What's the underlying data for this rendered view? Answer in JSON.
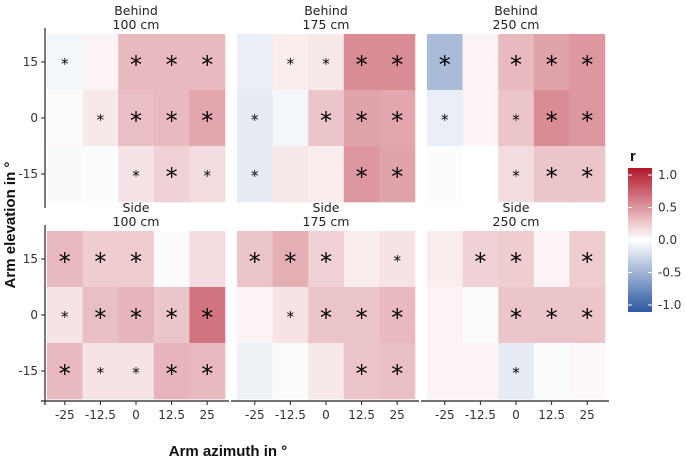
{
  "chart_data": {
    "type": "heatmap",
    "xlabel": "Arm azimuth in °",
    "ylabel": "Arm elevation in °",
    "x_categories": [
      "-25",
      "-12.5",
      "0",
      "12.5",
      "25"
    ],
    "y_categories": [
      "15",
      "0",
      "-15"
    ],
    "legend": {
      "title": "r",
      "ticks": [
        "1.0",
        "0.5",
        "0.0",
        "-0.5",
        "-1.0"
      ],
      "range": [
        -1,
        1
      ],
      "low_color": "#2c58a0",
      "mid_color": "#ffffff",
      "high_color": "#b2182b",
      "placement": "right"
    },
    "panels": [
      {
        "title_line1": "Behind",
        "title_line2": "100 cm",
        "values": [
          [
            -0.05,
            0.05,
            0.3,
            0.3,
            0.3
          ],
          [
            0.02,
            0.1,
            0.28,
            0.3,
            0.38
          ],
          [
            -0.03,
            -0.02,
            0.12,
            0.2,
            0.15
          ]
        ],
        "sig": [
          [
            1,
            0,
            2,
            2,
            2
          ],
          [
            0,
            1,
            2,
            2,
            2
          ],
          [
            0,
            0,
            1,
            2,
            1
          ]
        ]
      },
      {
        "title_line1": "Behind",
        "title_line2": "175 cm",
        "values": [
          [
            -0.1,
            0.08,
            0.1,
            0.5,
            0.5
          ],
          [
            -0.12,
            -0.05,
            0.25,
            0.4,
            0.38
          ],
          [
            -0.12,
            0.1,
            0.08,
            0.45,
            0.4
          ]
        ],
        "sig": [
          [
            0,
            1,
            1,
            2,
            2
          ],
          [
            1,
            0,
            2,
            2,
            2
          ],
          [
            1,
            0,
            0,
            2,
            2
          ]
        ]
      },
      {
        "title_line1": "Behind",
        "title_line2": "250 cm",
        "values": [
          [
            -0.4,
            0.05,
            0.3,
            0.4,
            0.45
          ],
          [
            -0.1,
            0.05,
            0.25,
            0.5,
            0.45
          ],
          [
            -0.02,
            0.0,
            0.15,
            0.25,
            0.25
          ]
        ],
        "sig": [
          [
            2,
            0,
            2,
            2,
            2
          ],
          [
            1,
            0,
            1,
            2,
            2
          ],
          [
            0,
            0,
            1,
            2,
            2
          ]
        ]
      },
      {
        "title_line1": "Side",
        "title_line2": "100 cm",
        "values": [
          [
            0.3,
            0.22,
            0.22,
            0.02,
            0.15
          ],
          [
            0.12,
            0.28,
            0.32,
            0.25,
            0.6
          ],
          [
            0.3,
            0.12,
            0.12,
            0.32,
            0.3
          ]
        ],
        "sig": [
          [
            2,
            2,
            2,
            0,
            0
          ],
          [
            1,
            2,
            2,
            2,
            2
          ],
          [
            2,
            1,
            1,
            2,
            2
          ]
        ]
      },
      {
        "title_line1": "Side",
        "title_line2": "175 cm",
        "values": [
          [
            0.25,
            0.35,
            0.2,
            0.08,
            0.12
          ],
          [
            0.05,
            0.12,
            0.25,
            0.25,
            0.3
          ],
          [
            -0.08,
            0.02,
            0.1,
            0.25,
            0.28
          ]
        ],
        "sig": [
          [
            2,
            2,
            2,
            0,
            1
          ],
          [
            0,
            1,
            2,
            2,
            2
          ],
          [
            0,
            0,
            0,
            2,
            2
          ]
        ]
      },
      {
        "title_line1": "Side",
        "title_line2": "250 cm",
        "values": [
          [
            0.08,
            0.2,
            0.22,
            0.05,
            0.22
          ],
          [
            0.05,
            0.02,
            0.25,
            0.25,
            0.25
          ],
          [
            0.05,
            0.05,
            -0.12,
            -0.02,
            0.03
          ]
        ],
        "sig": [
          [
            0,
            2,
            2,
            0,
            2
          ],
          [
            0,
            0,
            2,
            2,
            2
          ],
          [
            0,
            0,
            1,
            0,
            0
          ]
        ]
      }
    ]
  }
}
